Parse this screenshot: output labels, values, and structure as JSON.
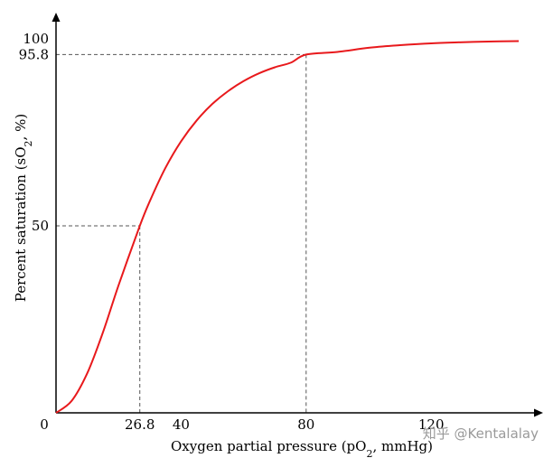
{
  "chart_data": {
    "type": "line",
    "xlabel_prefix": "Oxygen partial pressure (pO",
    "xlabel_sub": "2",
    "xlabel_suffix": ", mmHg)",
    "ylabel_prefix": "Percent saturation (sO",
    "ylabel_sub": "2",
    "ylabel_suffix": ", %)",
    "xlim": [
      0,
      150
    ],
    "ylim": [
      0,
      100
    ],
    "x_ticks": [
      "0",
      "26.8",
      "40",
      "80",
      "120"
    ],
    "y_ticks": [
      "50",
      "95.8",
      "100"
    ],
    "series": [
      {
        "color": "#e8191c",
        "x": [
          0,
          5,
          10,
          15,
          20,
          26.8,
          30,
          35,
          40,
          45,
          50,
          55,
          60,
          65,
          70,
          75,
          80,
          90,
          100,
          110,
          120,
          130,
          140,
          148
        ],
        "y": [
          0,
          3.2,
          10.6,
          21.5,
          34.1,
          50,
          56.6,
          65.5,
          72.6,
          78.2,
          82.6,
          86.0,
          88.7,
          90.8,
          92.4,
          93.6,
          95.8,
          96.5,
          97.6,
          98.3,
          98.8,
          99.1,
          99.3,
          99.4
        ]
      }
    ],
    "reference_points": [
      {
        "x": 26.8,
        "y": 50
      },
      {
        "x": 80,
        "y": 95.8
      }
    ],
    "grid": false,
    "legend": "none"
  },
  "watermark": "知乎 @Kentalalay"
}
